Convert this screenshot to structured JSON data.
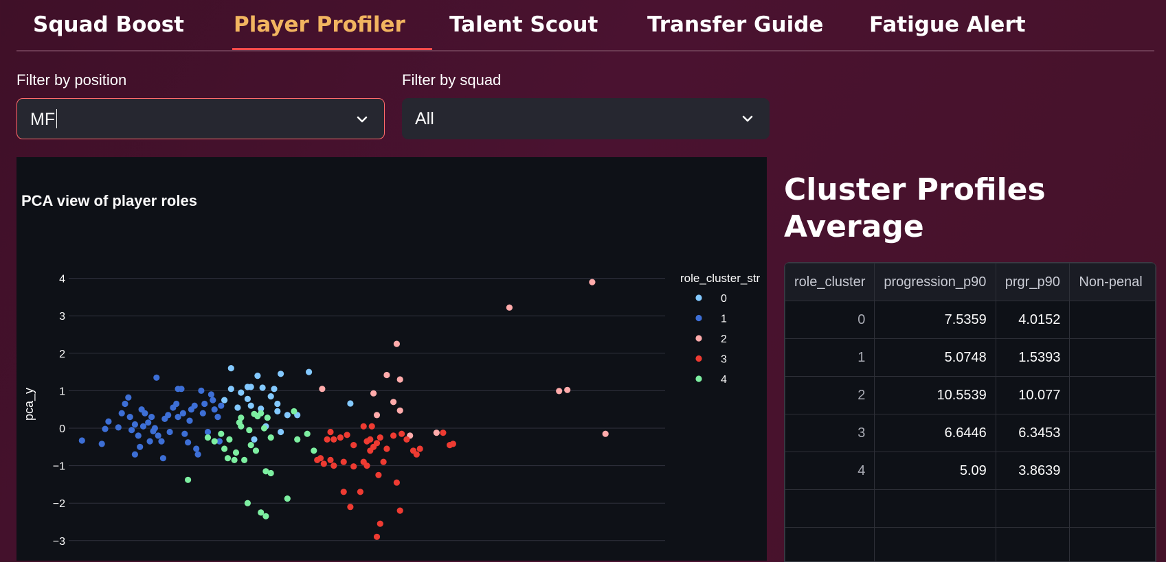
{
  "tabs": [
    {
      "label": "Squad Boost",
      "active": false
    },
    {
      "label": "Player Profiler",
      "active": true
    },
    {
      "label": "Talent Scout",
      "active": false
    },
    {
      "label": "Transfer Guide",
      "active": false
    },
    {
      "label": "Fatigue Alert",
      "active": false
    }
  ],
  "filters": {
    "position": {
      "label": "Filter by position",
      "value": "MF"
    },
    "squad": {
      "label": "Filter by squad",
      "value": "All"
    }
  },
  "colors": {
    "accent": "#ff4b4b",
    "active_tab": "#f2b560",
    "cluster_0": "#83c9ff",
    "cluster_1": "#3d6fd6",
    "cluster_2": "#ffabab",
    "cluster_3": "#ee3b32",
    "cluster_4": "#7defa1"
  },
  "chart_data": {
    "type": "scatter",
    "title": "PCA view of player roles",
    "xlabel": "",
    "ylabel": "pca_y",
    "legend_title": "role_cluster_str",
    "legend_position": "right",
    "y_ticks": [
      "4",
      "3",
      "2",
      "1",
      "0",
      "−1",
      "−2",
      "−3"
    ],
    "ylim": [
      -3.5,
      4.4
    ],
    "xlim": [
      -6.0,
      12.0
    ],
    "grid": true,
    "series": [
      {
        "name": "0",
        "color": "#83c9ff",
        "points": [
          [
            -1.1,
            1.6
          ],
          [
            -1.1,
            1.05
          ],
          [
            -0.8,
            0.95
          ],
          [
            -0.6,
            1.1
          ],
          [
            -0.6,
            0.78
          ],
          [
            -0.9,
            0.55
          ],
          [
            -0.5,
            0.6
          ],
          [
            -0.2,
            0.52
          ],
          [
            -0.3,
            1.4
          ],
          [
            -0.5,
            1.1
          ],
          [
            -0.15,
            1.08
          ],
          [
            0.1,
            0.85
          ],
          [
            0.4,
            1.45
          ],
          [
            0.2,
            1.05
          ],
          [
            0.3,
            0.65
          ],
          [
            0.3,
            0.45
          ],
          [
            0.6,
            0.35
          ],
          [
            -0.05,
            0.05
          ],
          [
            0.4,
            -0.1
          ],
          [
            -0.4,
            -0.3
          ],
          [
            1.25,
            1.5
          ],
          [
            0.9,
            0.35
          ],
          [
            2.5,
            0.66
          ],
          [
            -1.3,
            0.75
          ]
        ]
      },
      {
        "name": "1",
        "color": "#3d6fd6",
        "points": [
          [
            -5.6,
            -0.33
          ],
          [
            -5.0,
            -0.42
          ],
          [
            -4.9,
            -0.02
          ],
          [
            -4.8,
            0.18
          ],
          [
            -4.5,
            0.02
          ],
          [
            -4.3,
            0.65
          ],
          [
            -4.2,
            0.82
          ],
          [
            -4.15,
            0.3
          ],
          [
            -4.1,
            -0.05
          ],
          [
            -4.0,
            0.1
          ],
          [
            -3.9,
            -0.2
          ],
          [
            -3.8,
            0.5
          ],
          [
            -3.75,
            0.05
          ],
          [
            -3.7,
            0.4
          ],
          [
            -3.6,
            0.15
          ],
          [
            -3.55,
            -0.35
          ],
          [
            -3.5,
            0.3
          ],
          [
            -3.45,
            -0.08
          ],
          [
            -3.4,
            0.0
          ],
          [
            -3.35,
            1.35
          ],
          [
            -3.3,
            -0.2
          ],
          [
            -3.2,
            -0.35
          ],
          [
            -3.15,
            -0.8
          ],
          [
            -3.1,
            0.25
          ],
          [
            -3.0,
            0.35
          ],
          [
            -2.95,
            -0.1
          ],
          [
            -2.85,
            0.55
          ],
          [
            -2.75,
            0.65
          ],
          [
            -2.7,
            1.05
          ],
          [
            -2.6,
            1.05
          ],
          [
            -2.55,
            0.4
          ],
          [
            -2.5,
            -0.15
          ],
          [
            -2.4,
            -0.38
          ],
          [
            -2.35,
            0.2
          ],
          [
            -2.3,
            0.5
          ],
          [
            -2.2,
            0.6
          ],
          [
            -2.15,
            -0.55
          ],
          [
            -2.1,
            -0.7
          ],
          [
            -2.0,
            1.0
          ],
          [
            -1.95,
            0.4
          ],
          [
            -1.9,
            0.65
          ],
          [
            -1.8,
            -0.1
          ],
          [
            -1.7,
            0.9
          ],
          [
            -1.65,
            0.75
          ],
          [
            -1.6,
            0.5
          ],
          [
            -1.5,
            0.3
          ],
          [
            -1.45,
            -0.35
          ],
          [
            -1.4,
            0.6
          ],
          [
            -4.0,
            -0.7
          ],
          [
            -2.7,
            0.3
          ],
          [
            -3.85,
            -0.5
          ],
          [
            -4.4,
            0.4
          ]
        ]
      },
      {
        "name": "2",
        "color": "#ffabab",
        "points": [
          [
            9.8,
            3.9
          ],
          [
            7.3,
            3.22
          ],
          [
            3.9,
            2.25
          ],
          [
            3.6,
            1.42
          ],
          [
            4.0,
            1.3
          ],
          [
            1.65,
            1.05
          ],
          [
            3.2,
            0.93
          ],
          [
            8.8,
            0.99
          ],
          [
            9.05,
            1.02
          ],
          [
            3.8,
            0.7
          ],
          [
            4.0,
            0.47
          ],
          [
            3.3,
            0.35
          ],
          [
            4.3,
            -0.2
          ],
          [
            5.1,
            -0.12
          ],
          [
            10.2,
            -0.15
          ]
        ]
      },
      {
        "name": "3",
        "color": "#ee3b32",
        "points": [
          [
            1.9,
            -0.1
          ],
          [
            2.0,
            -0.3
          ],
          [
            2.2,
            -0.25
          ],
          [
            2.4,
            -0.18
          ],
          [
            2.6,
            -0.45
          ],
          [
            1.5,
            -0.85
          ],
          [
            1.7,
            -0.95
          ],
          [
            1.9,
            -0.85
          ],
          [
            2.0,
            -1.0
          ],
          [
            2.3,
            -0.9
          ],
          [
            2.6,
            -1.02
          ],
          [
            1.8,
            -0.3
          ],
          [
            1.6,
            -0.8
          ],
          [
            2.3,
            -1.7
          ],
          [
            2.5,
            -2.1
          ],
          [
            2.8,
            -1.7
          ],
          [
            2.9,
            -0.9
          ],
          [
            3.0,
            -1.0
          ],
          [
            3.1,
            -0.3
          ],
          [
            3.2,
            -0.5
          ],
          [
            3.3,
            -0.4
          ],
          [
            3.35,
            -1.25
          ],
          [
            3.4,
            -0.25
          ],
          [
            3.5,
            -0.9
          ],
          [
            3.6,
            -0.55
          ],
          [
            3.8,
            -0.2
          ],
          [
            3.9,
            -1.45
          ],
          [
            4.05,
            -0.15
          ],
          [
            4.2,
            -0.3
          ],
          [
            4.4,
            -0.6
          ],
          [
            4.5,
            -0.7
          ],
          [
            4.6,
            -0.55
          ],
          [
            5.3,
            -0.12
          ],
          [
            5.5,
            -0.45
          ],
          [
            5.6,
            -0.42
          ],
          [
            3.4,
            -2.55
          ],
          [
            3.3,
            -2.9
          ],
          [
            4.0,
            -2.2
          ],
          [
            2.9,
            0.05
          ],
          [
            3.15,
            0.05
          ],
          [
            3.0,
            -0.35
          ],
          [
            3.1,
            -0.6
          ]
        ]
      },
      {
        "name": "4",
        "color": "#7defa1",
        "points": [
          [
            -2.4,
            -1.38
          ],
          [
            -1.8,
            -0.25
          ],
          [
            -1.6,
            -0.35
          ],
          [
            -1.4,
            -0.15
          ],
          [
            -1.3,
            -0.55
          ],
          [
            -1.2,
            -0.8
          ],
          [
            -1.15,
            -0.3
          ],
          [
            -1.0,
            -0.85
          ],
          [
            -0.95,
            -0.65
          ],
          [
            -0.8,
            0.28
          ],
          [
            -0.8,
            0.05
          ],
          [
            -0.7,
            -0.85
          ],
          [
            -0.55,
            -0.05
          ],
          [
            -0.5,
            -0.45
          ],
          [
            -0.4,
            0.38
          ],
          [
            -0.3,
            0.32
          ],
          [
            -0.2,
            0.4
          ],
          [
            -0.1,
            0.0
          ],
          [
            0.0,
            0.28
          ],
          [
            0.1,
            -0.25
          ],
          [
            -0.6,
            -2.0
          ],
          [
            -0.2,
            -2.25
          ],
          [
            -0.05,
            -2.35
          ],
          [
            0.6,
            -1.88
          ],
          [
            0.1,
            -1.2
          ],
          [
            -0.05,
            -1.15
          ],
          [
            0.9,
            -0.3
          ],
          [
            1.2,
            -0.15
          ],
          [
            1.4,
            -0.6
          ],
          [
            0.8,
            0.45
          ],
          [
            -0.35,
            -0.6
          ],
          [
            -0.85,
            0.15
          ]
        ]
      }
    ]
  },
  "cluster_profiles": {
    "heading": "Cluster Profiles Average",
    "columns": [
      "role_cluster",
      "progression_p90",
      "prgr_p90",
      "Non-penal"
    ],
    "rows": [
      [
        "0",
        "7.5359",
        "4.0152",
        ""
      ],
      [
        "1",
        "5.0748",
        "1.5393",
        ""
      ],
      [
        "2",
        "10.5539",
        "10.077",
        ""
      ],
      [
        "3",
        "6.6446",
        "6.3453",
        ""
      ],
      [
        "4",
        "5.09",
        "3.8639",
        ""
      ],
      [
        "",
        "",
        "",
        ""
      ],
      [
        "",
        "",
        "",
        ""
      ]
    ]
  }
}
